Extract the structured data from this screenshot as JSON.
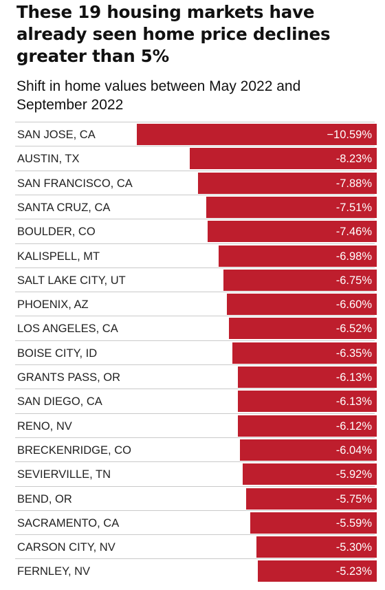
{
  "title": "These 19 housing markets have already seen home price declines greater than 5%",
  "subtitle": "Shift in home values between May 2022 and September 2022",
  "colors": {
    "bar": "#be1e2d",
    "value_text": "#ffffff",
    "label_text": "#222222",
    "divider": "#c9c9c9"
  },
  "chart_data": {
    "type": "bar",
    "orientation": "horizontal",
    "title": "These 19 housing markets have already seen home price declines greater than 5%",
    "subtitle": "Shift in home values between May 2022 and September 2022",
    "categories": [
      "SAN JOSE, CA",
      "AUSTIN, TX",
      "SAN FRANCISCO, CA",
      "SANTA CRUZ, CA",
      "BOULDER, CO",
      "KALISPELL, MT",
      "SALT LAKE CITY, UT",
      "PHOENIX, AZ",
      "LOS ANGELES, CA",
      "BOISE CITY, ID",
      "GRANTS PASS, OR",
      "SAN DIEGO, CA",
      "RENO, NV",
      "BRECKENRIDGE, CO",
      "SEVIERVILLE, TN",
      "BEND, OR",
      "SACRAMENTO, CA",
      "CARSON CITY, NV",
      "FERNLEY, NV"
    ],
    "values": [
      -10.59,
      -8.23,
      -7.88,
      -7.51,
      -7.46,
      -6.98,
      -6.75,
      -6.6,
      -6.52,
      -6.35,
      -6.13,
      -6.13,
      -6.12,
      -6.04,
      -5.92,
      -5.75,
      -5.59,
      -5.3,
      -5.23
    ],
    "value_labels": [
      "−10.59%",
      "-8.23%",
      "-7.88%",
      "-7.51%",
      "-7.46%",
      "-6.98%",
      "-6.75%",
      "-6.60%",
      "-6.52%",
      "-6.35%",
      "-6.13%",
      "-6.13%",
      "-6.12%",
      "-6.04%",
      "-5.92%",
      "-5.75%",
      "-5.59%",
      "-5.30%",
      "-5.23%"
    ],
    "grid": false,
    "legend": "none"
  }
}
